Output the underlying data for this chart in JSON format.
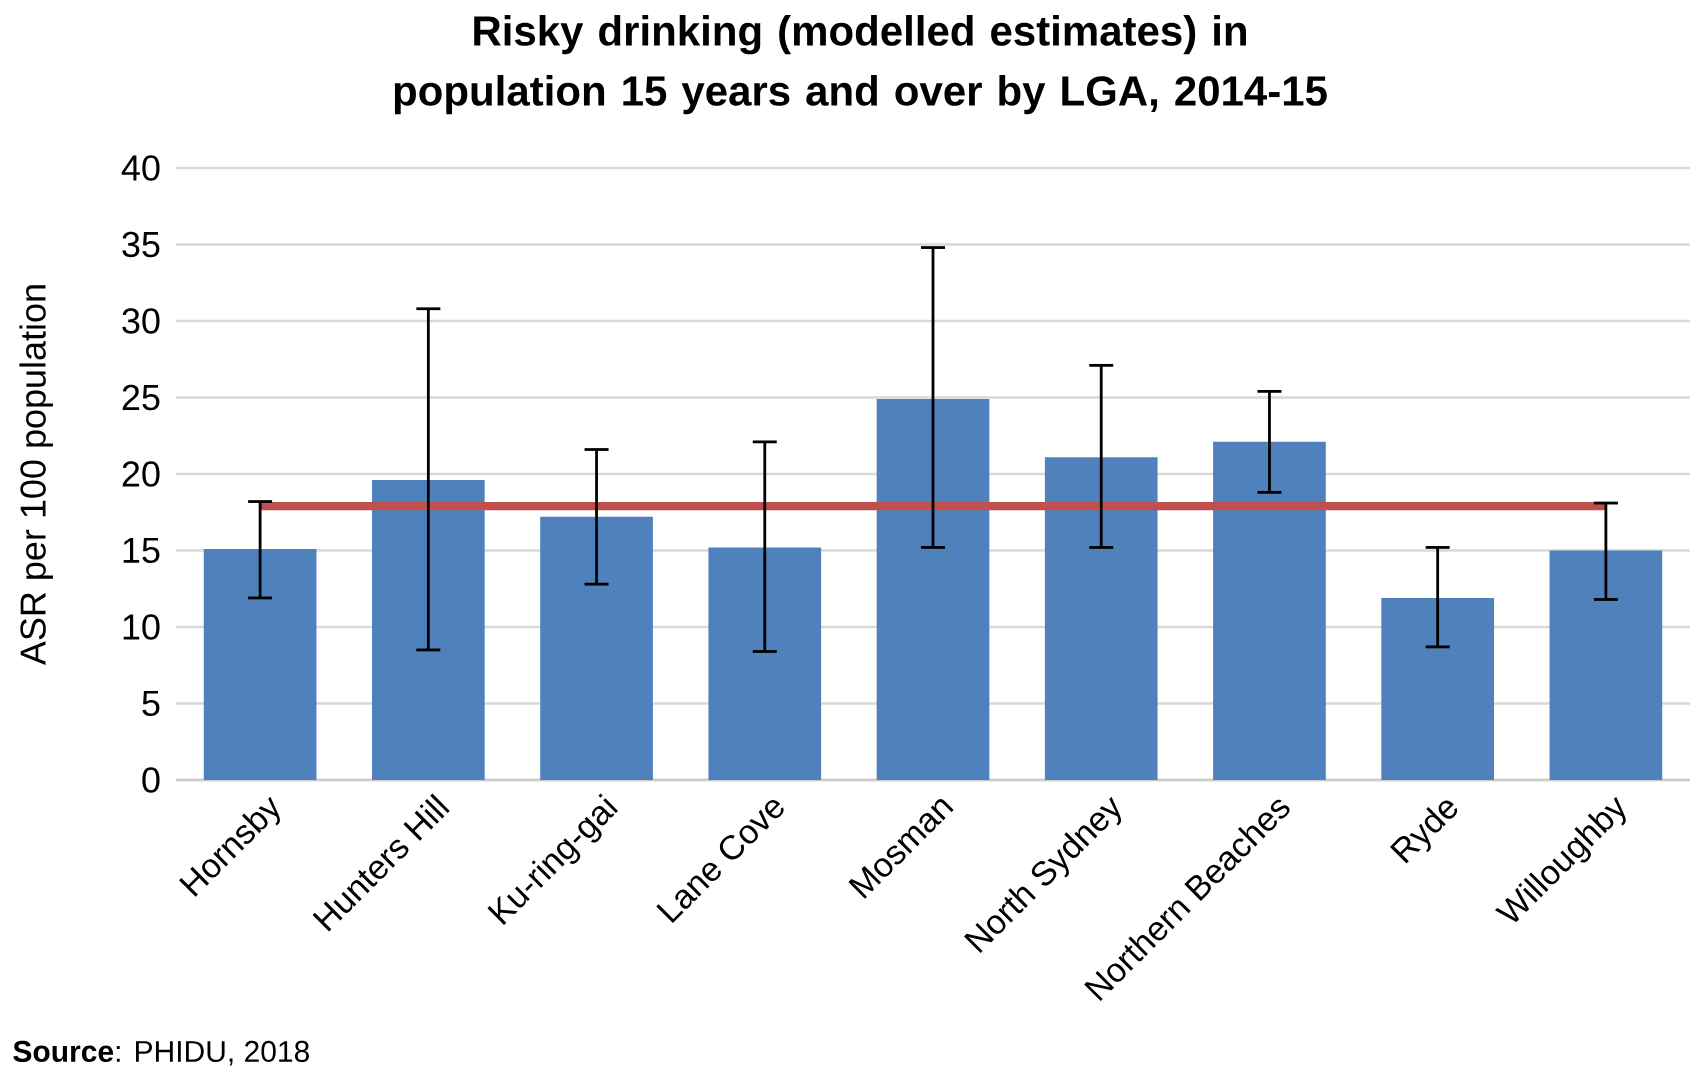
{
  "chart_data": {
    "type": "bar",
    "title": "Risky drinking (modelled estimates) in population 15 years and over by LGA, 2014-15",
    "ylabel": "ASR per 100 population",
    "categories": [
      "Hornsby",
      "Hunters Hill",
      "Ku-ring-gai",
      "Lane Cove",
      "Mosman",
      "North Sydney",
      "Northern Beaches",
      "Ryde",
      "Willoughby"
    ],
    "series": [
      {
        "color": "#4f81bd",
        "values": [
          15.1,
          19.6,
          17.2,
          15.2,
          24.9,
          21.1,
          22.1,
          11.9,
          15.0
        ],
        "errors": [
          [
            11.9,
            18.2
          ],
          [
            8.5,
            30.8
          ],
          [
            12.8,
            21.6
          ],
          [
            8.4,
            22.1
          ],
          [
            15.2,
            34.8
          ],
          [
            15.2,
            27.1
          ],
          [
            18.8,
            25.4
          ],
          [
            8.7,
            15.2
          ],
          [
            11.8,
            18.1
          ]
        ]
      },
      {
        "type": "line",
        "color": "#c0504d",
        "values": [
          17.9,
          17.9,
          17.9,
          17.9,
          17.9,
          17.9,
          17.9,
          17.9,
          17.9
        ]
      }
    ],
    "ylim": [
      0,
      40
    ],
    "yticks": [
      0,
      5,
      10,
      15,
      20,
      25,
      30,
      35,
      40
    ],
    "grid": "y",
    "marker": "none",
    "annotations": [
      "**Source**: PHIDU, 2018"
    ]
  }
}
